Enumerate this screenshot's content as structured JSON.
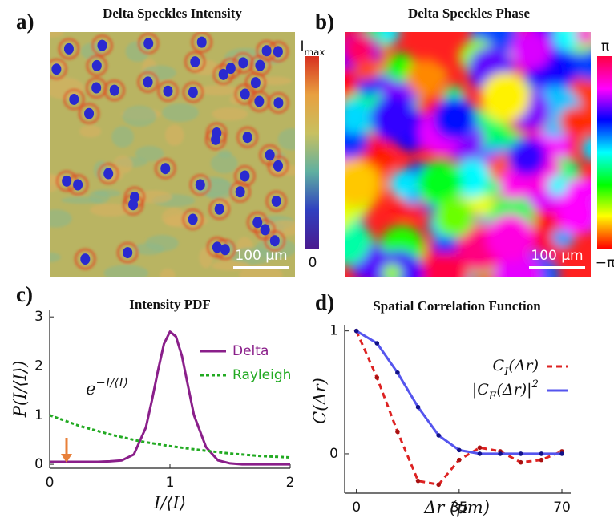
{
  "chart_data": [
    {
      "type": "image",
      "panel_label": "a)",
      "title": "Delta Speckles Intensity",
      "colorbar_labels": [
        "I_{max}",
        "0"
      ],
      "scalebar_label": "100 µm"
    },
    {
      "type": "image-phase",
      "panel_label": "b)",
      "title": "Delta Speckles Phase",
      "colorbar_labels": [
        "π",
        "−π"
      ],
      "scalebar_label": "100 µm"
    },
    {
      "type": "line",
      "panel_label": "c)",
      "title": "Intensity PDF",
      "xlabel": "I/⟨I⟩",
      "ylabel": "P(I/⟨I⟩)",
      "annotation": "e^{−I/⟨I⟩}",
      "xlim": [
        0,
        2
      ],
      "ylim": [
        -0.08,
        3.15
      ],
      "xticks": [
        0,
        1,
        2
      ],
      "yticks": [
        0,
        1,
        2,
        3
      ],
      "legend": "upper right",
      "series": [
        {
          "name": "Delta",
          "color": "#8a1f8a",
          "style": "solid",
          "x": [
            0,
            0.1,
            0.2,
            0.3,
            0.4,
            0.5,
            0.6,
            0.7,
            0.8,
            0.85,
            0.9,
            0.95,
            1.0,
            1.05,
            1.1,
            1.15,
            1.2,
            1.3,
            1.4,
            1.5,
            1.6,
            1.8,
            2.0
          ],
          "values": [
            0.05,
            0.05,
            0.05,
            0.05,
            0.05,
            0.06,
            0.08,
            0.2,
            0.75,
            1.3,
            1.9,
            2.45,
            2.7,
            2.6,
            2.2,
            1.6,
            1.0,
            0.35,
            0.08,
            0.02,
            0,
            0,
            0
          ]
        },
        {
          "name": "Rayleigh",
          "color": "#22aa22",
          "style": "dotted",
          "x": [
            0,
            0.25,
            0.5,
            0.75,
            1.0,
            1.25,
            1.5,
            1.75,
            2.0
          ],
          "values": [
            1,
            0.78,
            0.61,
            0.47,
            0.37,
            0.29,
            0.22,
            0.17,
            0.14
          ]
        }
      ]
    },
    {
      "type": "line",
      "panel_label": "d)",
      "title": "Spatial Correlation Function",
      "xlabel": "Δr (µm)",
      "ylabel": "C(Δr)",
      "xlim": [
        -4,
        73
      ],
      "ylim": [
        -0.32,
        1.05
      ],
      "xticks": [
        0,
        35,
        70
      ],
      "yticks": [
        0,
        1
      ],
      "legend": "upper right",
      "markers": true,
      "series": [
        {
          "name": "C_{I}(Δr)",
          "color": "#dd2222",
          "style": "dashed",
          "x": [
            0,
            7,
            14,
            21,
            28,
            35,
            42,
            49,
            56,
            63,
            70
          ],
          "values": [
            1,
            0.62,
            0.18,
            -0.22,
            -0.25,
            -0.05,
            0.05,
            0.02,
            -0.07,
            -0.05,
            0.02
          ]
        },
        {
          "name": "|C_{E}(Δr)|^{2}",
          "color": "#5555ee",
          "style": "solid",
          "x": [
            0,
            7,
            14,
            21,
            28,
            35,
            42,
            49,
            56,
            63,
            70
          ],
          "values": [
            1,
            0.9,
            0.66,
            0.38,
            0.15,
            0.03,
            0,
            0,
            0,
            0,
            0
          ]
        }
      ]
    }
  ]
}
